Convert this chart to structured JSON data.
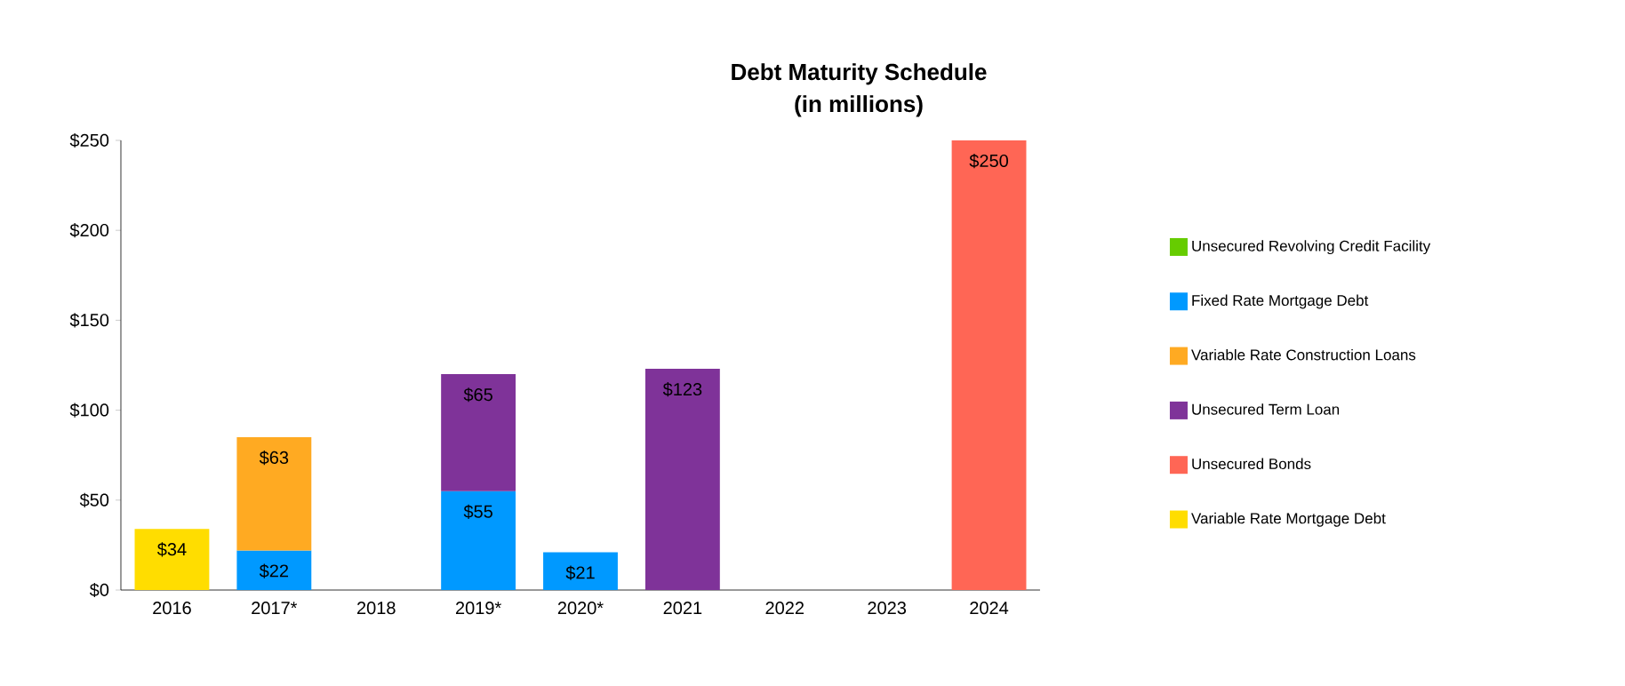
{
  "chart_data": {
    "type": "bar",
    "title": "Debt Maturity Schedule",
    "subtitle": "(in millions)",
    "categories": [
      "2016",
      "2017*",
      "2018",
      "2019*",
      "2020*",
      "2021",
      "2022",
      "2023",
      "2024"
    ],
    "stacked": true,
    "series": [
      {
        "name": "Unsecured Revolving Credit Facility",
        "color": "#66cc00",
        "values": [
          null,
          null,
          null,
          null,
          null,
          null,
          null,
          null,
          null
        ],
        "value_labels": [
          null,
          null,
          null,
          null,
          null,
          null,
          null,
          null,
          null
        ]
      },
      {
        "name": "Fixed Rate Mortgage Debt",
        "color": "#0099ff",
        "values": [
          null,
          22,
          null,
          55,
          21,
          null,
          null,
          null,
          null
        ],
        "value_labels": [
          null,
          "$22",
          null,
          "$55",
          "$21",
          null,
          null,
          null,
          null
        ]
      },
      {
        "name": "Variable Rate Construction Loans",
        "color": "#ffaa22",
        "values": [
          null,
          63,
          null,
          null,
          null,
          null,
          null,
          null,
          null
        ],
        "value_labels": [
          null,
          "$63",
          null,
          null,
          null,
          null,
          null,
          null,
          null
        ]
      },
      {
        "name": "Unsecured Term Loan",
        "color": "#7f3399",
        "values": [
          null,
          null,
          null,
          65,
          null,
          123,
          null,
          null,
          null
        ],
        "value_labels": [
          null,
          null,
          null,
          "$65",
          null,
          "$123",
          null,
          null,
          null
        ]
      },
      {
        "name": "Unsecured Bonds",
        "color": "#ff6655",
        "values": [
          null,
          null,
          null,
          null,
          null,
          null,
          null,
          null,
          250
        ],
        "value_labels": [
          null,
          null,
          null,
          null,
          null,
          null,
          null,
          null,
          "$250"
        ]
      },
      {
        "name": "Variable Rate Mortgage Debt",
        "color": "#ffdd00",
        "values": [
          34,
          null,
          null,
          null,
          null,
          null,
          null,
          null,
          null
        ],
        "value_labels": [
          "$34",
          null,
          null,
          null,
          null,
          null,
          null,
          null,
          null
        ]
      }
    ],
    "ylim": [
      0,
      250
    ],
    "yticks": [
      {
        "value": 0,
        "label": "$0"
      },
      {
        "value": 50,
        "label": "$50"
      },
      {
        "value": 100,
        "label": "$100"
      },
      {
        "value": 150,
        "label": "$150"
      },
      {
        "value": 200,
        "label": "$200"
      },
      {
        "value": 250,
        "label": "$250"
      }
    ],
    "legend": "right"
  }
}
